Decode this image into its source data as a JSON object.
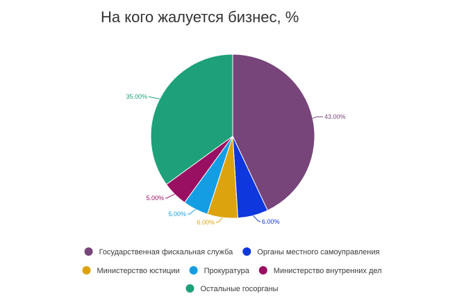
{
  "chart_data": {
    "type": "pie",
    "title": "На кого жалуется бизнес, %",
    "slices": [
      {
        "label": "Государственная фискальная служба",
        "value": 43,
        "value_label": "43.00%",
        "color": "#77457a"
      },
      {
        "label": "Органы местного самоуправления",
        "value": 6,
        "value_label": "6.00%",
        "color": "#0e37dd"
      },
      {
        "label": "Министерство юстиции",
        "value": 6,
        "value_label": "6.00%",
        "color": "#dca30f"
      },
      {
        "label": "Прокуратура",
        "value": 5,
        "value_label": "5.00%",
        "color": "#149de3"
      },
      {
        "label": "Министерство внутренних дел",
        "value": 5,
        "value_label": "5.00%",
        "color": "#990f62"
      },
      {
        "label": "Остальные госорганы",
        "value": 35,
        "value_label": "35.00%",
        "color": "#1ea17a"
      }
    ],
    "legend_position": "bottom"
  }
}
